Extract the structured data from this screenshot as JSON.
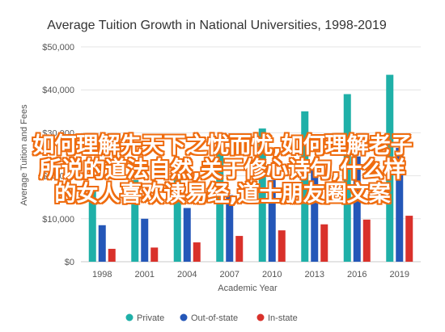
{
  "chart_data": {
    "type": "bar",
    "title": "Average Tuition Growth in National Universities, 1998-2019",
    "xlabel": "Academic Year",
    "ylabel": "Average Tuition and Fees",
    "categories": [
      "1998",
      "2001",
      "2004",
      "2007",
      "2010",
      "2013",
      "2016",
      "2019"
    ],
    "ylim": [
      0,
      50000
    ],
    "yticks": [
      "$0",
      "$10,000",
      "$20,000",
      "$30,000",
      "$40,000",
      "$50,000"
    ],
    "ytick_values": [
      0,
      10000,
      20000,
      30000,
      40000,
      50000
    ],
    "grid": true,
    "legend_position": "bottom",
    "series": [
      {
        "name": "Private",
        "color": "#1fb0a8",
        "values": [
          17000,
          19000,
          22500,
          26500,
          31000,
          35000,
          39000,
          43500
        ]
      },
      {
        "name": "Out-of-state",
        "color": "#2457b8",
        "values": [
          8500,
          10000,
          12500,
          15500,
          19000,
          22500,
          24500,
          26500
        ]
      },
      {
        "name": "In-state",
        "color": "#d9312b",
        "values": [
          3000,
          3300,
          4500,
          6000,
          7300,
          8700,
          9800,
          10700
        ]
      }
    ]
  },
  "overlay": {
    "lines": [
      "如何理解先天下之忧而忧,如何理解老子",
      "所说的道法自然,关于修心诗句,什么样",
      "的女人喜欢读易经,道士朋友圈文案"
    ]
  }
}
